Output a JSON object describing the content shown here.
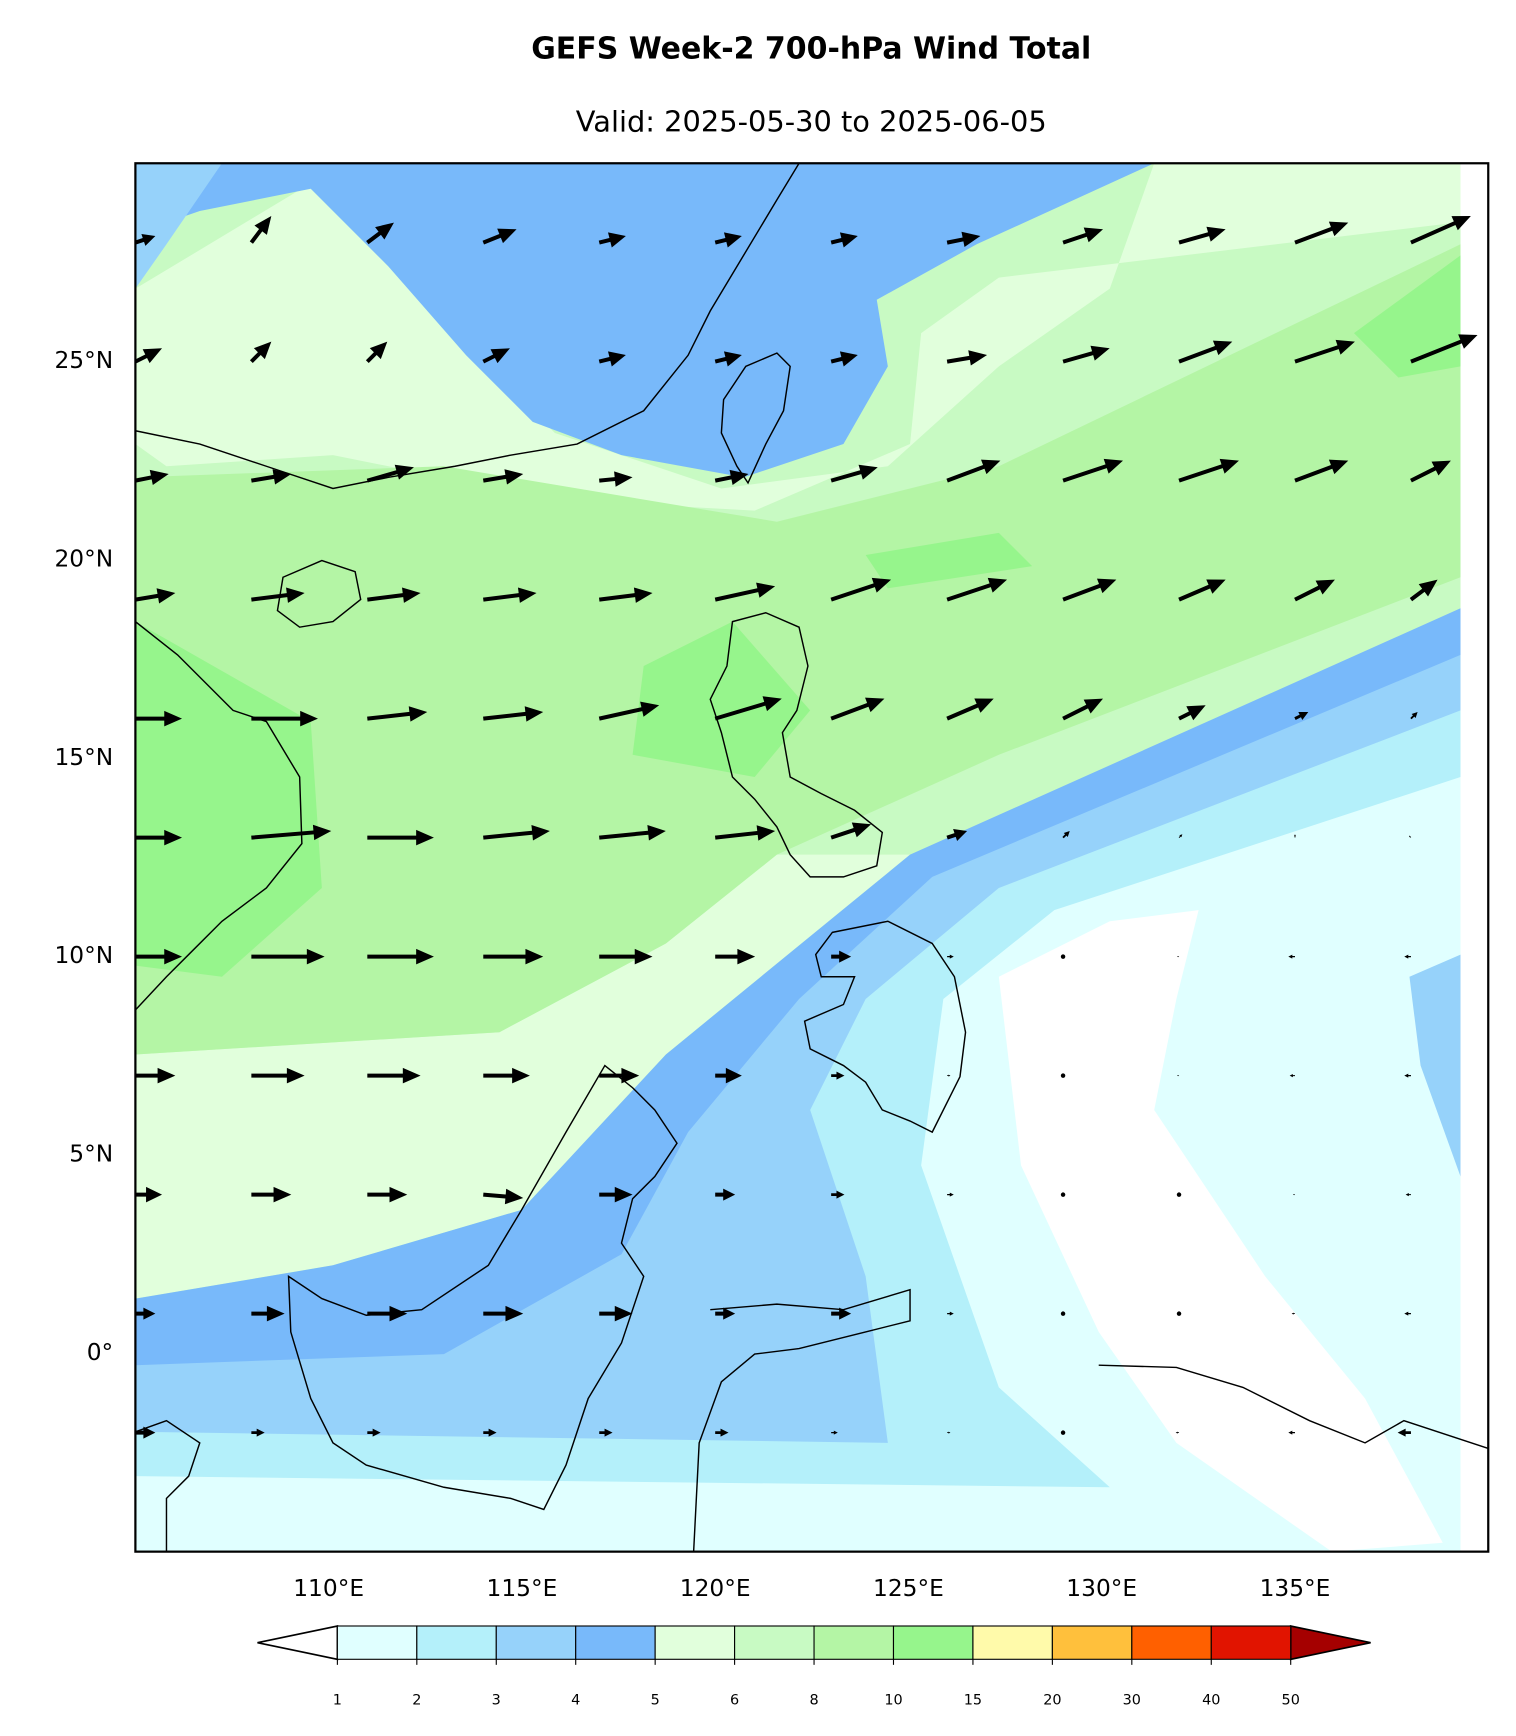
{
  "chart_data": {
    "type": "quiver",
    "title": "GEFS Week-2 700-hPa Wind Total",
    "subtitle": "Valid: 2025-05-30 to 2025-06-05",
    "xlim": [
      105,
      140
    ],
    "ylim": [
      -5,
      30
    ],
    "xticks": [
      {
        "value": 110,
        "label": "110°E"
      },
      {
        "value": 115,
        "label": "115°E"
      },
      {
        "value": 120,
        "label": "120°E"
      },
      {
        "value": 125,
        "label": "125°E"
      },
      {
        "value": 130,
        "label": "130°E"
      },
      {
        "value": 135,
        "label": "135°E"
      }
    ],
    "yticks": [
      {
        "value": 0,
        "label": "0°"
      },
      {
        "value": 5,
        "label": "5°N"
      },
      {
        "value": 10,
        "label": "10°N"
      },
      {
        "value": 15,
        "label": "15°N"
      },
      {
        "value": 20,
        "label": "20°N"
      },
      {
        "value": 25,
        "label": "25°N"
      }
    ],
    "lon": [
      105,
      108,
      111,
      114,
      117,
      120,
      123,
      126,
      129,
      132,
      135,
      138
    ],
    "lat": [
      28,
      25,
      22,
      19,
      16,
      13,
      10,
      7,
      4,
      1,
      -2
    ],
    "u": [
      [
        3,
        3,
        4,
        5,
        4,
        4,
        4,
        5,
        6,
        7,
        8,
        9
      ],
      [
        4,
        3,
        3,
        4,
        4,
        4,
        4,
        6,
        7,
        8,
        9,
        10
      ],
      [
        5,
        6,
        7,
        6,
        5,
        5,
        7,
        8,
        9,
        9,
        8,
        6
      ],
      [
        6,
        8,
        8,
        8,
        8,
        9,
        9,
        9,
        8,
        7,
        6,
        4
      ],
      [
        7,
        10,
        9,
        9,
        9,
        10,
        8,
        7,
        6,
        4,
        2,
        1
      ],
      [
        7,
        12,
        10,
        10,
        10,
        9,
        6,
        3,
        1,
        0.5,
        0,
        -0.3
      ],
      [
        7,
        11,
        10,
        9,
        8,
        6,
        3,
        1,
        0,
        -0.3,
        -1,
        -1
      ],
      [
        6,
        8,
        8,
        7,
        6,
        4,
        2,
        0.5,
        0,
        -0.3,
        -0.8,
        -1
      ],
      [
        4,
        6,
        6,
        6,
        5,
        3,
        2,
        1,
        0,
        0,
        -0.3,
        -0.8
      ],
      [
        3,
        5,
        6,
        6,
        5,
        3,
        3,
        1,
        0,
        0,
        -0.5,
        -1
      ],
      [
        3,
        2,
        2,
        2,
        2,
        2,
        1,
        0.5,
        0,
        -0.5,
        -1,
        -2
      ]
    ],
    "v": [
      [
        1,
        4,
        3,
        2,
        1,
        1,
        1,
        1,
        2,
        2,
        3,
        4
      ],
      [
        2,
        3,
        3,
        2,
        1,
        1,
        1,
        1,
        2,
        3,
        3,
        4
      ],
      [
        1,
        1,
        2,
        1,
        0.5,
        1,
        2,
        3,
        3,
        3,
        3,
        3
      ],
      [
        1,
        1,
        1,
        1,
        1,
        2,
        3,
        3,
        3,
        3,
        3,
        3
      ],
      [
        0,
        0,
        1,
        1,
        2,
        3,
        3,
        3,
        3,
        2,
        1,
        1
      ],
      [
        0,
        1,
        0,
        1,
        1,
        1,
        2,
        1,
        1,
        0.5,
        0.5,
        0.3
      ],
      [
        0,
        0,
        0,
        0,
        0,
        0,
        0,
        0,
        0,
        0,
        0,
        0
      ],
      [
        0,
        0,
        0,
        0,
        0,
        0,
        0,
        0,
        0,
        0,
        0,
        0
      ],
      [
        0,
        0,
        0,
        -0.5,
        0,
        0,
        0,
        0,
        0,
        0,
        0,
        0
      ],
      [
        0,
        0,
        0,
        0,
        0,
        0,
        0,
        0,
        0,
        0,
        0,
        0
      ],
      [
        0,
        0,
        0,
        0,
        0,
        0,
        0,
        0,
        0,
        0,
        0,
        0
      ]
    ],
    "colorbar": {
      "levels": [
        1,
        2,
        3,
        4,
        5,
        6,
        8,
        10,
        15,
        20,
        30,
        40,
        50
      ],
      "colors": [
        "#e0ffff",
        "#b4f0fa",
        "#96d2fa",
        "#78b9fa",
        "#e1ffdc",
        "#c8fac3",
        "#b4f5a5",
        "#96f58c",
        "#fffaaa",
        "#ffc03c",
        "#ff6000",
        "#e11400"
      ],
      "under": "#ffffff",
      "over": "#a50000"
    }
  }
}
